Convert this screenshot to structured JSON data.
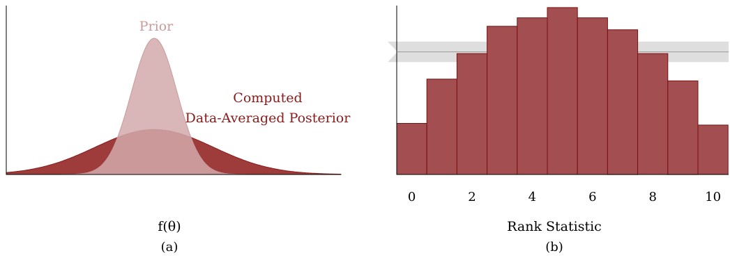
{
  "colors": {
    "posterior": "#8b1a1a",
    "posterior_fill": "#9e3b3b",
    "prior": "#c99a9b",
    "prior_fill": "#d2aaab",
    "bar_fill": "#a34e50",
    "bar_stroke": "#7a1010",
    "band": "#dedede",
    "band_line": "#9a9a9a"
  },
  "chart_data": [
    {
      "type": "area",
      "xlabel": "f(θ)",
      "caption": "(a)",
      "annotations": {
        "prior": "Prior",
        "posterior_line1": "Computed",
        "posterior_line2": "Data-Averaged Posterior"
      },
      "series": [
        {
          "name": "Prior",
          "mean": 0,
          "sd": 1,
          "peak": 1.0
        },
        {
          "name": "Computed Data-Averaged Posterior",
          "mean": 0,
          "sd": 2.6,
          "peak": 0.33
        }
      ],
      "xlim": [
        -6.5,
        8.2
      ]
    },
    {
      "type": "bar",
      "xlabel": "Rank Statistic",
      "caption": "(b)",
      "categories": [
        0,
        1,
        2,
        3,
        4,
        5,
        6,
        7,
        8,
        9,
        10
      ],
      "values": [
        0.3,
        0.56,
        0.71,
        0.87,
        0.92,
        0.98,
        0.92,
        0.85,
        0.71,
        0.55,
        0.29
      ],
      "xticks": [
        "0",
        "2",
        "4",
        "6",
        "8",
        "10"
      ],
      "reference_band": {
        "center": 0.72,
        "lower": 0.66,
        "upper": 0.78
      },
      "ylim": [
        0,
        1
      ]
    }
  ]
}
